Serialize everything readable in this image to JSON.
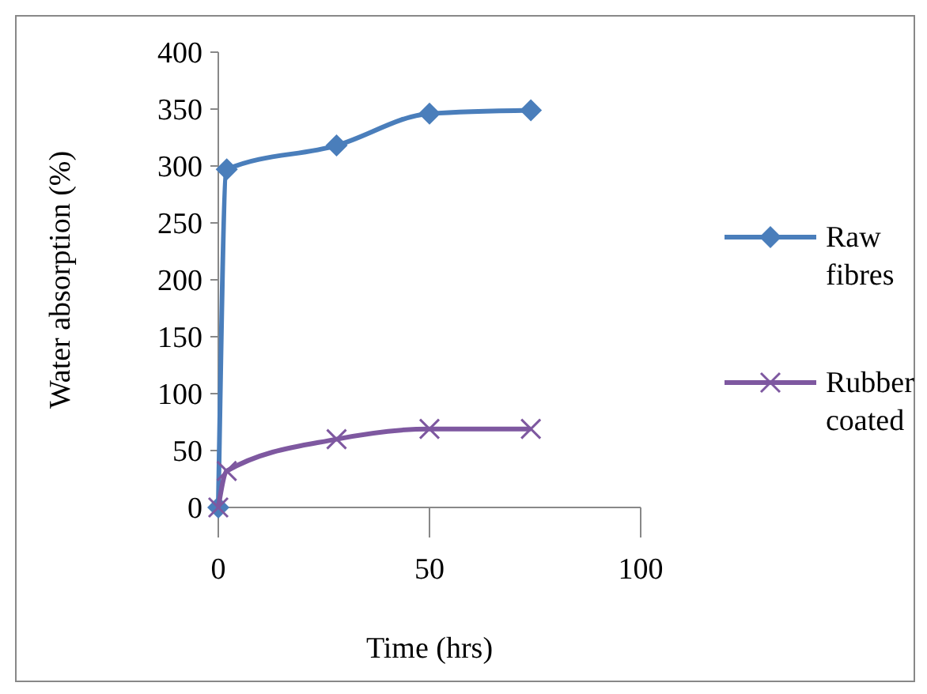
{
  "chart_data": {
    "type": "line",
    "xlabel": "Time (hrs)",
    "ylabel": "Water absorption (%)",
    "xlim": [
      0,
      100
    ],
    "xticks": [
      0,
      50,
      100
    ],
    "ylim": [
      0,
      400
    ],
    "yticks": [
      0,
      50,
      100,
      150,
      200,
      250,
      300,
      350,
      400
    ],
    "grid": false,
    "legend": "right",
    "line_style": "solid",
    "series": [
      {
        "name": "Raw fibres",
        "color": "#4a7ebb",
        "marker": "diamond",
        "x": [
          0,
          2,
          28,
          50,
          74
        ],
        "values": [
          0,
          297,
          318,
          346,
          349
        ]
      },
      {
        "name": "Rubber coated",
        "color": "#7e58a0",
        "marker": "cross",
        "x": [
          0,
          2,
          28,
          50,
          74
        ],
        "values": [
          0,
          32,
          60,
          69,
          69
        ]
      }
    ]
  }
}
